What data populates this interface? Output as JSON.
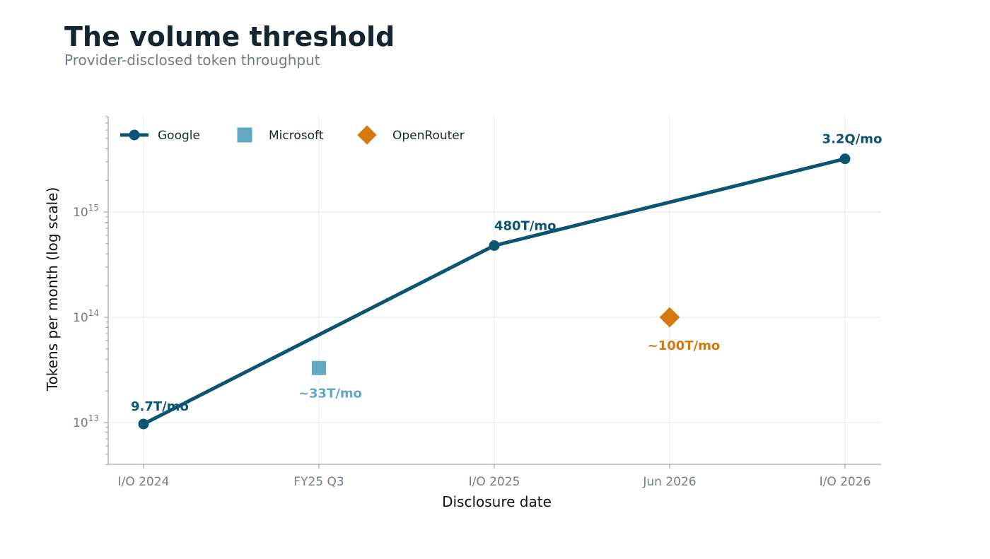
{
  "title": "The volume threshold",
  "subtitle": "Provider-disclosed token throughput",
  "chart_data": {
    "type": "line",
    "xlabel": "Disclosure date",
    "ylabel": "Tokens per month (log scale)",
    "y_scale": "log",
    "ylim": [
      4000000000000.0,
      8500000000000000.0
    ],
    "y_ticks": [
      {
        "value": 10000000000000.0,
        "base": "10",
        "exp": "13"
      },
      {
        "value": 100000000000000.0,
        "base": "10",
        "exp": "14"
      },
      {
        "value": 1000000000000000.0,
        "base": "10",
        "exp": "15"
      }
    ],
    "categories": [
      "I/O 2024",
      "FY25 Q3",
      "I/O 2025",
      "Jun 2026",
      "I/O 2026"
    ],
    "grid": true,
    "legend_position": "top-left",
    "series": [
      {
        "name": "Google",
        "marker": "circle",
        "line": true,
        "color": "#0b5572",
        "points": [
          {
            "x": "I/O 2024",
            "y": 9700000000000.0,
            "label": "9.7T/mo"
          },
          {
            "x": "I/O 2025",
            "y": 480000000000000.0,
            "label": "480T/mo"
          },
          {
            "x": "I/O 2026",
            "y": 3200000000000000.0,
            "label": "3.2Q/mo"
          }
        ]
      },
      {
        "name": "Microsoft",
        "marker": "square",
        "line": false,
        "color": "#62a7c3",
        "points": [
          {
            "x": "FY25 Q3",
            "y": 33000000000000.0,
            "label": "~33T/mo"
          }
        ]
      },
      {
        "name": "OpenRouter",
        "marker": "diamond",
        "line": false,
        "color": "#d5790f",
        "points": [
          {
            "x": "Jun 2026",
            "y": 100000000000000.0,
            "label": "~100T/mo"
          }
        ]
      }
    ]
  }
}
